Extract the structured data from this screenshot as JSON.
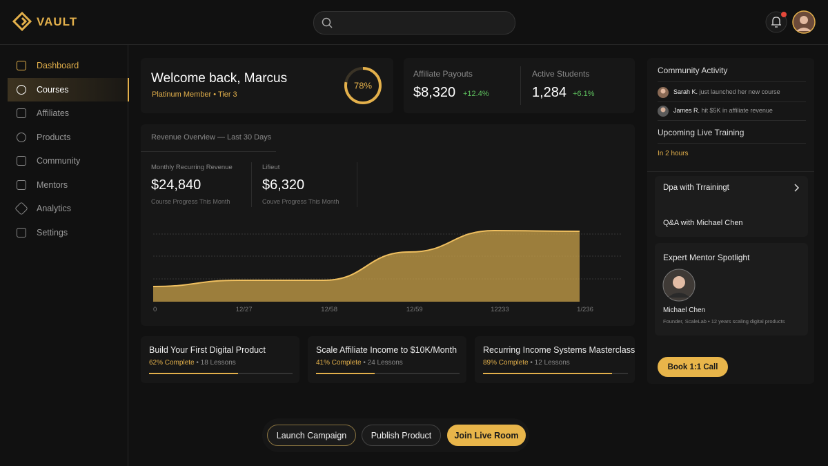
{
  "brand": "VAULT",
  "nav": [
    "Dashboard",
    "Courses",
    "Affiliates",
    "Products",
    "Community",
    "Mentors",
    "Analytics",
    "Settings"
  ],
  "welcome": {
    "title": "Welcome back, Marcus",
    "subtitle": "Platinum Member • Tier 3",
    "progress": {
      "value": 78,
      "label": "78%"
    }
  },
  "stats": [
    {
      "label": "Affiliate Payouts",
      "value": "$8,320",
      "change": "+12.4%"
    },
    {
      "label": "Active Students",
      "value": "1,284",
      "change": "+6.1%"
    }
  ],
  "revenue": {
    "title": "Revenue Overview — Last 30 Days",
    "metrics": [
      {
        "label": "Monthly Recurring Revenue",
        "value": "$24,840",
        "note": "Course Progress This Month"
      },
      {
        "label": "Lifieut",
        "value": "$6,320",
        "note": "Couve Progress This Month"
      }
    ],
    "chart_data": {
      "type": "area",
      "categories": [
        "0",
        "12/27",
        "12/58",
        "12/59",
        "12233",
        "1/236"
      ],
      "values": [
        22,
        31,
        31,
        72,
        103,
        102
      ],
      "ylim": [
        0,
        110
      ],
      "color": "#c9a24a"
    }
  },
  "courses": [
    {
      "title": "Build Your First Digital Product",
      "progress": 62,
      "progress_label": "62% Complete",
      "lessons": "• 18 Lessons"
    },
    {
      "title": "Scale Affiliate Income to $10K/Month",
      "progress": 41,
      "progress_label": "41% Complete",
      "lessons": "• 24 Lessons"
    },
    {
      "title": "Recurring Income Systems Masterclass",
      "progress": 89,
      "progress_label": "89% Complete",
      "lessons": "• 12 Lessons"
    }
  ],
  "community": {
    "title": "Community Activity",
    "items": [
      {
        "name": "Sarah K.",
        "text": "just launched her new course"
      },
      {
        "name": "James R.",
        "text": "hit $5K in affiliate revenue"
      }
    ]
  },
  "training": {
    "title": "Upcoming Live Training",
    "time": "In 2 hours",
    "sessions": [
      "Dpa with Trrainingt",
      "Q&A with Michael Chen"
    ]
  },
  "mentor": {
    "title": "Expert Mentor Spotlight",
    "name": "Michael Chen",
    "bio": "Founder, ScaleLab • 12 years scaling digital products",
    "cta": "Book 1:1 Call"
  },
  "actions": [
    "Launch Campaign",
    "Publish Product",
    "Join Live Room"
  ]
}
